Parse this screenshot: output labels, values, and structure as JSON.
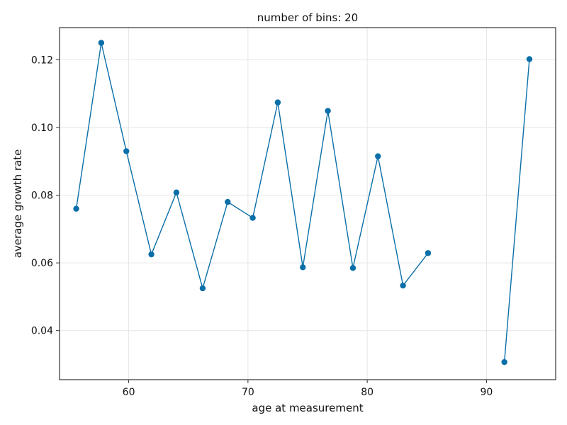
{
  "chart_data": {
    "type": "line",
    "title": "number of bins: 20",
    "xlabel": "age at measurement",
    "ylabel": "average growth rate",
    "xlim": [
      54.2,
      95.8
    ],
    "ylim": [
      0.0255,
      0.1295
    ],
    "xticks": [
      60,
      70,
      80,
      90
    ],
    "yticks": [
      0.04,
      0.06,
      0.08,
      0.1,
      0.12
    ],
    "xtick_labels": [
      "60",
      "70",
      "80",
      "90"
    ],
    "ytick_labels": [
      "0.04",
      "0.06",
      "0.08",
      "0.10",
      "0.12"
    ],
    "grid": true,
    "color": "#0a6fa8",
    "series": [
      {
        "x": [
          55.6,
          57.7,
          59.8,
          61.9,
          64.0,
          66.2,
          68.3,
          70.4,
          72.5,
          74.6,
          76.7,
          78.8,
          80.9,
          83.0,
          85.1
        ],
        "y": [
          0.076,
          0.125,
          0.093,
          0.0625,
          0.0808,
          0.0525,
          0.078,
          0.0733,
          0.1074,
          0.0587,
          0.1049,
          0.0585,
          0.0915,
          0.0533,
          0.0629
        ]
      },
      {
        "x": [
          91.5,
          93.6
        ],
        "y": [
          0.0307,
          0.1202
        ]
      }
    ]
  }
}
